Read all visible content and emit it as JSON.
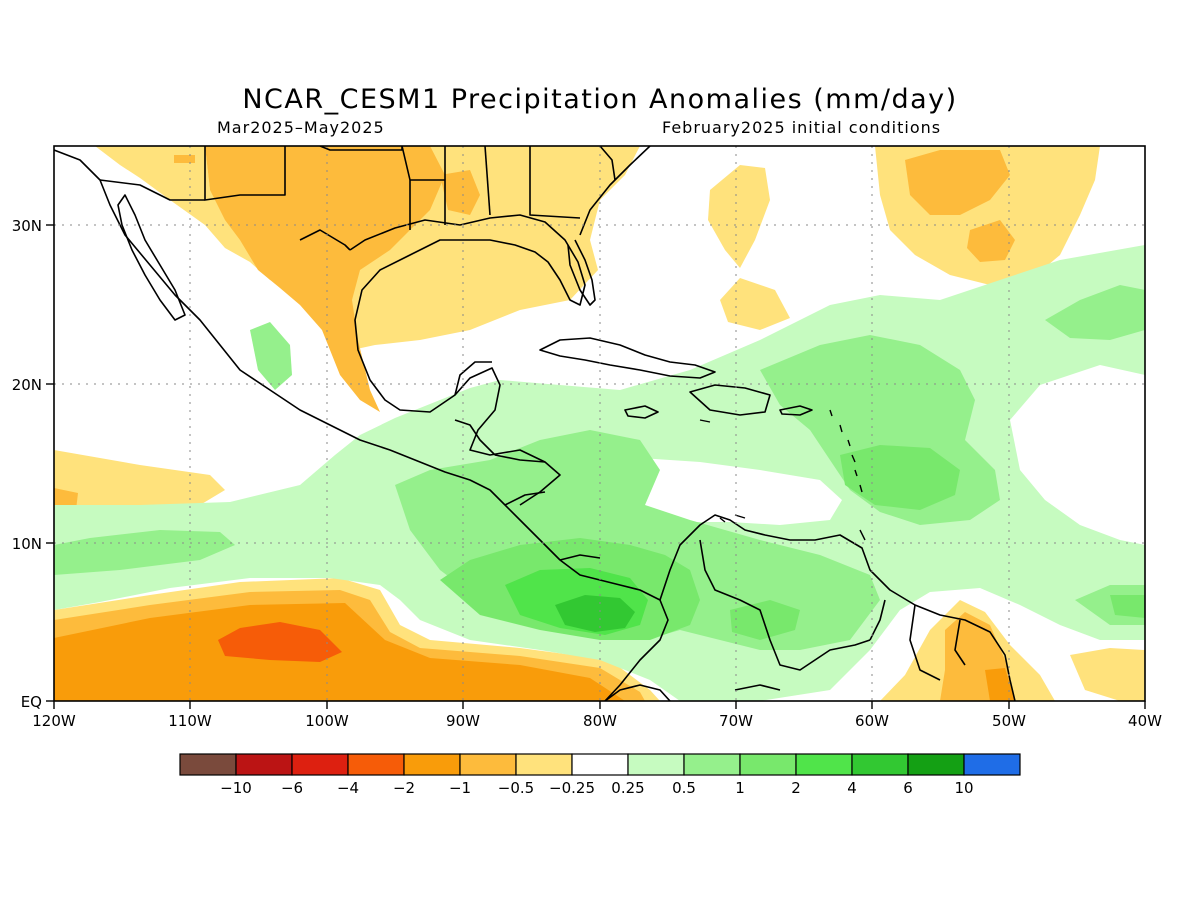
{
  "title": "NCAR_CESM1 Precipitation Anomalies (mm/day)",
  "period": "Mar2025–May2025",
  "init": "February2025 initial conditions",
  "lon_labels": [
    "120W",
    "110W",
    "100W",
    "90W",
    "80W",
    "70W",
    "60W",
    "50W",
    "40W"
  ],
  "lat_labels": [
    "30N",
    "20N",
    "10N",
    "EQ"
  ],
  "colorbar": {
    "colors": [
      "#7a4a3c",
      "#bb1414",
      "#dd2010",
      "#f65c08",
      "#f99c0a",
      "#fdbb3c",
      "#ffe27c",
      "#ffffff",
      "#c6fbc0",
      "#95f08c",
      "#78e86c",
      "#50e44a",
      "#32c832",
      "#14a014",
      "#1f6de7"
    ],
    "labels": [
      "−10",
      "−6",
      "−4",
      "−2",
      "−1",
      "−0.5",
      "−0.25",
      "0.25",
      "0.5",
      "1",
      "2",
      "4",
      "6",
      "10"
    ]
  }
}
